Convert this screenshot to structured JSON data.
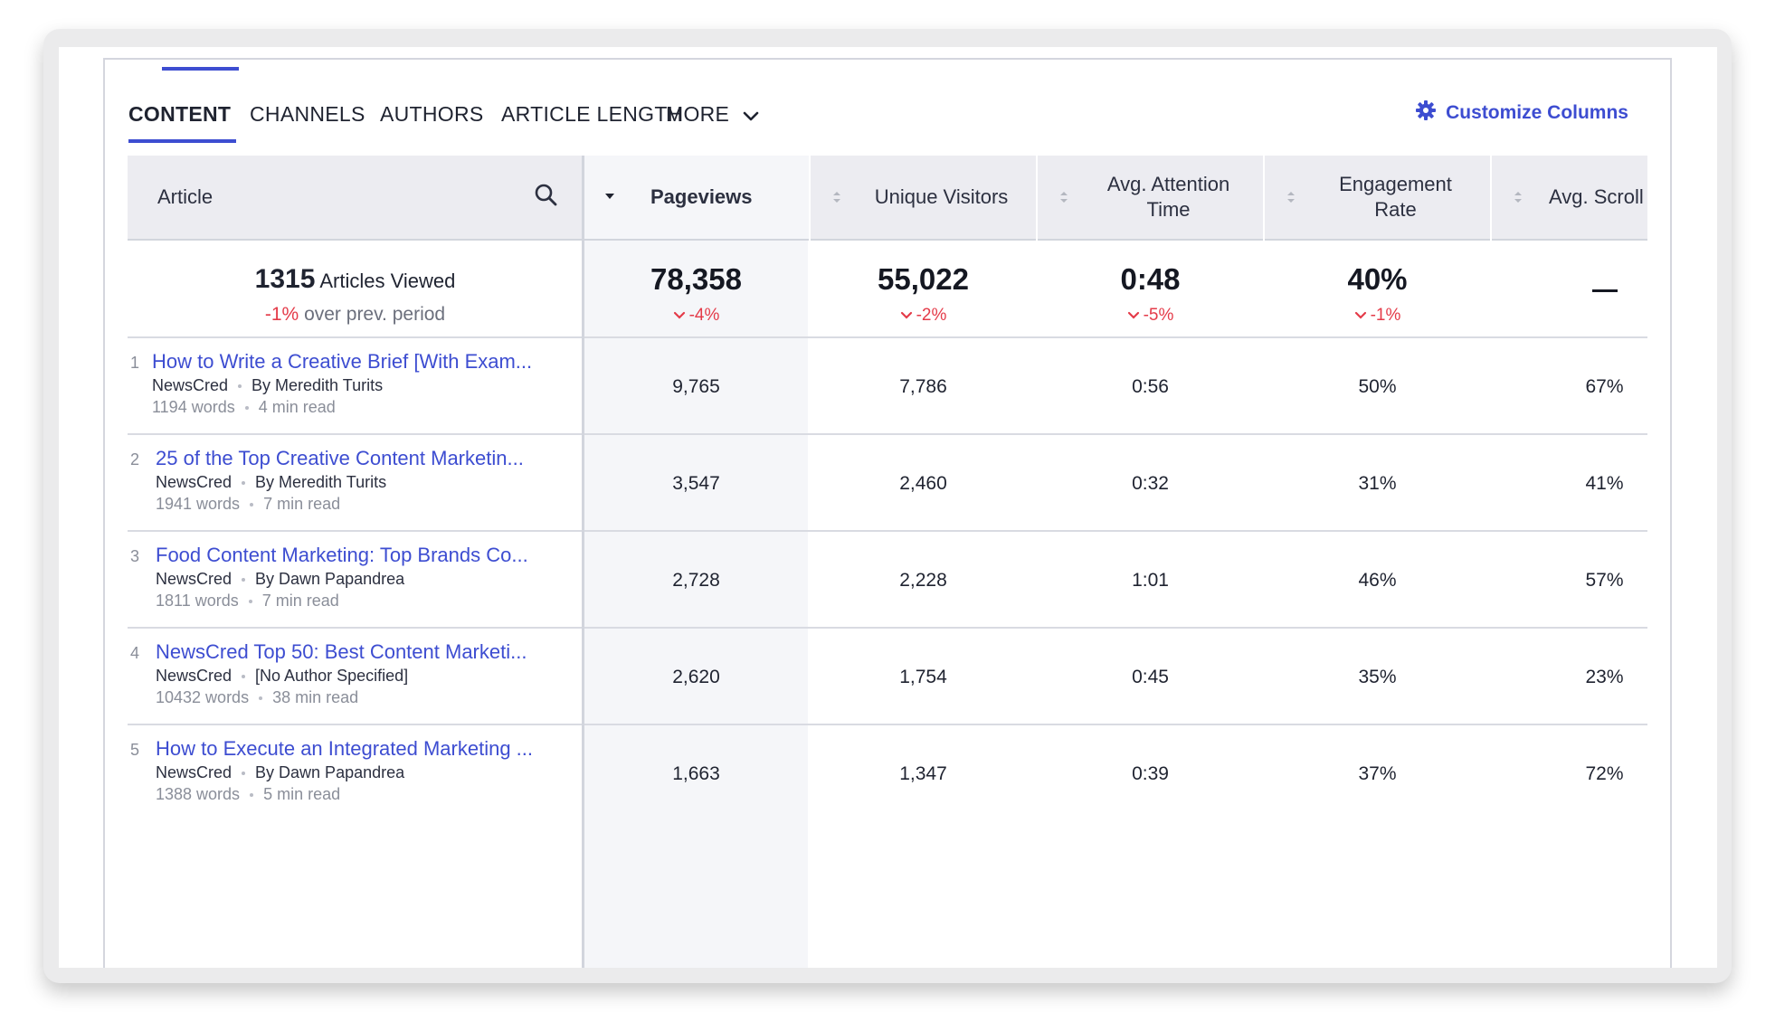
{
  "tabs": [
    {
      "label": "CONTENT",
      "active": true
    },
    {
      "label": "CHANNELS"
    },
    {
      "label": "AUTHORS"
    },
    {
      "label": "ARTICLE LENGTH"
    },
    {
      "label": "MORE"
    }
  ],
  "customize": {
    "label": "Customize Columns",
    "icon": "gear-icon"
  },
  "colors": {
    "accent": "#3d4dd1",
    "negative": "#e43b49",
    "header_bg": "#ececf1"
  },
  "table": {
    "article_header": "Article",
    "columns": [
      {
        "label": "Pageviews",
        "sorted": "desc"
      },
      {
        "label": "Unique Visitors"
      },
      {
        "label": "Avg. Attention Time"
      },
      {
        "label": "Engagement Rate"
      },
      {
        "label": "Avg. Scroll Depth"
      }
    ],
    "summary": {
      "count": "1315",
      "count_label": "Articles Viewed",
      "change": "-1%",
      "change_label": "over prev. period",
      "values": [
        {
          "value": "78,358",
          "delta": "-4%"
        },
        {
          "value": "55,022",
          "delta": "-2%"
        },
        {
          "value": "0:48",
          "delta": "-5%"
        },
        {
          "value": "40%",
          "delta": "-1%"
        },
        {
          "value": "—",
          "delta": ""
        }
      ]
    },
    "rows": [
      {
        "rank": "1",
        "title": "How to Write a Creative Brief [With Exam...",
        "publisher": "NewsCred",
        "author": "By Meredith Turits",
        "words": "1194 words",
        "read": "4 min read",
        "values": [
          "9,765",
          "7,786",
          "0:56",
          "50%",
          "67%"
        ]
      },
      {
        "rank": "2",
        "title": "25 of the Top Creative Content Marketin...",
        "publisher": "NewsCred",
        "author": "By Meredith Turits",
        "words": "1941 words",
        "read": "7 min read",
        "values": [
          "3,547",
          "2,460",
          "0:32",
          "31%",
          "41%"
        ]
      },
      {
        "rank": "3",
        "title": "Food Content Marketing: Top Brands Co...",
        "publisher": "NewsCred",
        "author": "By Dawn Papandrea",
        "words": "1811 words",
        "read": "7 min read",
        "values": [
          "2,728",
          "2,228",
          "1:01",
          "46%",
          "57%"
        ]
      },
      {
        "rank": "4",
        "title": "NewsCred Top 50: Best Content Marketi...",
        "publisher": "NewsCred",
        "author": "[No Author Specified]",
        "words": "10432 words",
        "read": "38 min read",
        "values": [
          "2,620",
          "1,754",
          "0:45",
          "35%",
          "23%"
        ]
      },
      {
        "rank": "5",
        "title": "How to Execute an Integrated Marketing ...",
        "publisher": "NewsCred",
        "author": "By Dawn Papandrea",
        "words": "1388 words",
        "read": "5 min read",
        "values": [
          "1,663",
          "1,347",
          "0:39",
          "37%",
          "72%"
        ]
      }
    ]
  }
}
